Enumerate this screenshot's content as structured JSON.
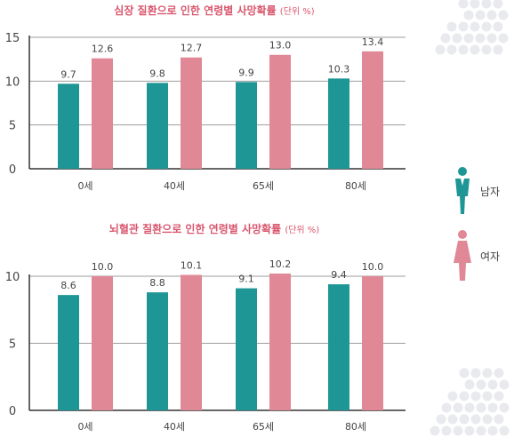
{
  "colors": {
    "male": "#1f9696",
    "female": "#e08895",
    "title": "#d9566d",
    "grid": "#9e9e9e",
    "axis": "#333333",
    "text": "#444444",
    "dots": "#e9eaee"
  },
  "legend": [
    {
      "label": "남자",
      "icon": "male-person-icon"
    },
    {
      "label": "여자",
      "icon": "female-person-icon"
    }
  ],
  "chart_data": [
    {
      "type": "bar",
      "title": "심장 질환으로 인한 연령별 사망확률",
      "title_unit": "(단위 %)",
      "categories": [
        "0세",
        "40세",
        "65세",
        "80세"
      ],
      "series": [
        {
          "name": "남자",
          "values": [
            9.7,
            9.8,
            9.9,
            10.3
          ]
        },
        {
          "name": "여자",
          "values": [
            12.6,
            12.7,
            13.0,
            13.4
          ]
        }
      ],
      "ylim": [
        0,
        15
      ],
      "yticks": [
        0,
        5,
        10,
        15
      ],
      "grid": true
    },
    {
      "type": "bar",
      "title": "뇌혈관 질환으로 인한 연령별 사망확률",
      "title_unit": "(단위 %)",
      "categories": [
        "0세",
        "40세",
        "65세",
        "80세"
      ],
      "series": [
        {
          "name": "남자",
          "values": [
            8.6,
            8.8,
            9.1,
            9.4
          ]
        },
        {
          "name": "여자",
          "values": [
            10.0,
            10.1,
            10.2,
            10.0
          ]
        }
      ],
      "ylim": [
        0,
        10
      ],
      "yticks": [
        0,
        5,
        10
      ],
      "grid": true
    }
  ]
}
